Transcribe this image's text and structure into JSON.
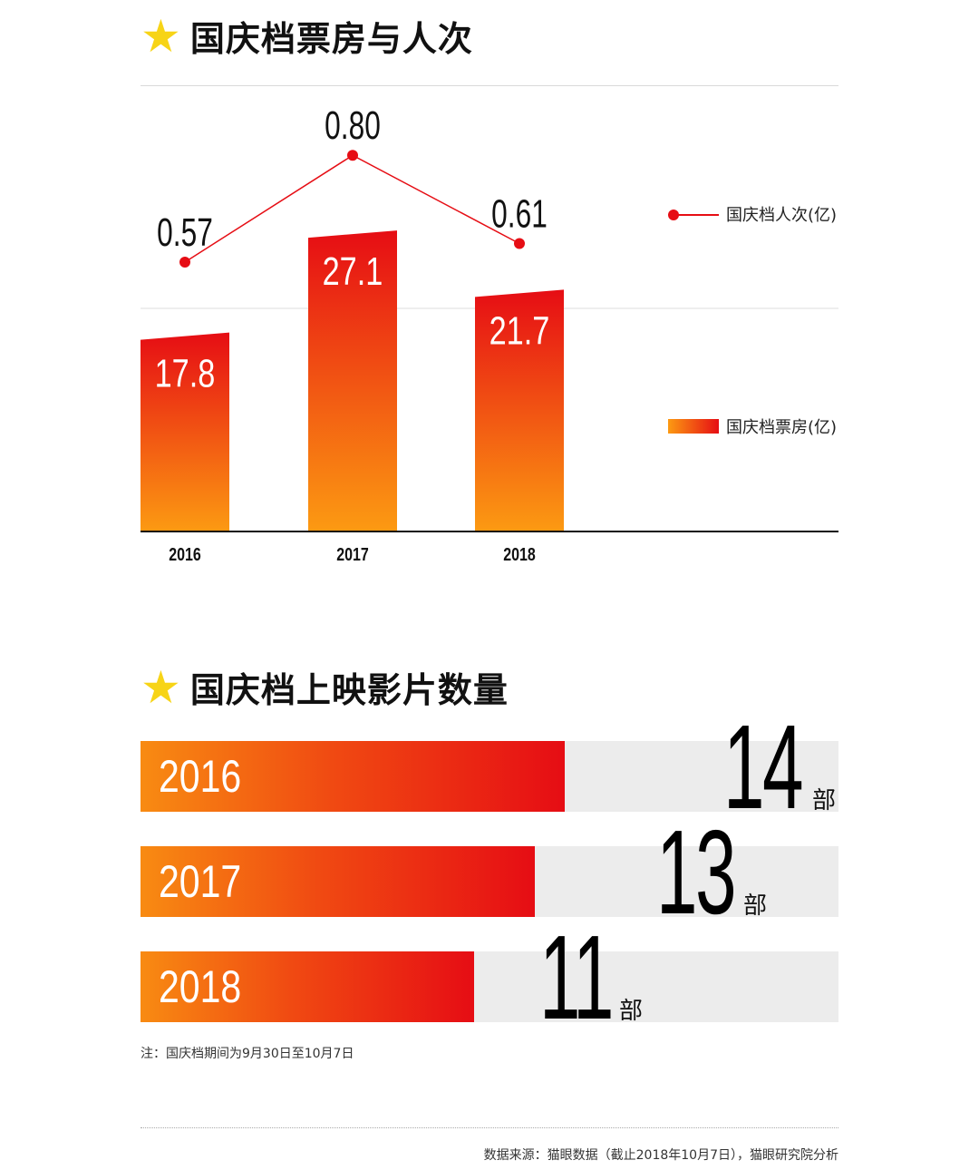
{
  "section1": {
    "star": "★",
    "title": "国庆档票房与人次"
  },
  "section2": {
    "star": "★",
    "title": "国庆档上映影片数量"
  },
  "chart_data": [
    {
      "type": "bar",
      "title": "国庆档票房与人次",
      "categories": [
        "2016",
        "2017",
        "2018"
      ],
      "series": [
        {
          "name": "国庆档票房(亿)",
          "type": "bar",
          "values": [
            17.8,
            27.1,
            21.7
          ],
          "labels": [
            "17.8",
            "27.1",
            "21.7"
          ]
        },
        {
          "name": "国庆档人次(亿)",
          "type": "line",
          "values": [
            0.57,
            0.8,
            0.61
          ],
          "labels": [
            "0.57",
            "0.80",
            "0.61"
          ]
        }
      ],
      "legend": [
        {
          "name": "国庆档人次(亿)",
          "marker": "line-dot",
          "color": "#e60d14"
        },
        {
          "name": "国庆档票房(亿)",
          "marker": "gradient-box",
          "color": "#f04a12"
        }
      ],
      "colors": {
        "bar_top": "#e60d14",
        "bar_bottom": "#fc9a12",
        "line": "#e60d14"
      }
    },
    {
      "type": "bar",
      "orientation": "horizontal",
      "title": "国庆档上映影片数量",
      "categories": [
        "2016",
        "2017",
        "2018"
      ],
      "values": [
        14,
        13,
        11
      ],
      "value_labels": [
        "14",
        "13",
        "11"
      ],
      "unit": "部"
    }
  ],
  "footer": {
    "note": "注：国庆档期间为9月30日至10月7日",
    "source": "数据来源：猫眼数据（截止2018年10月7日），猫眼研究院分析"
  }
}
